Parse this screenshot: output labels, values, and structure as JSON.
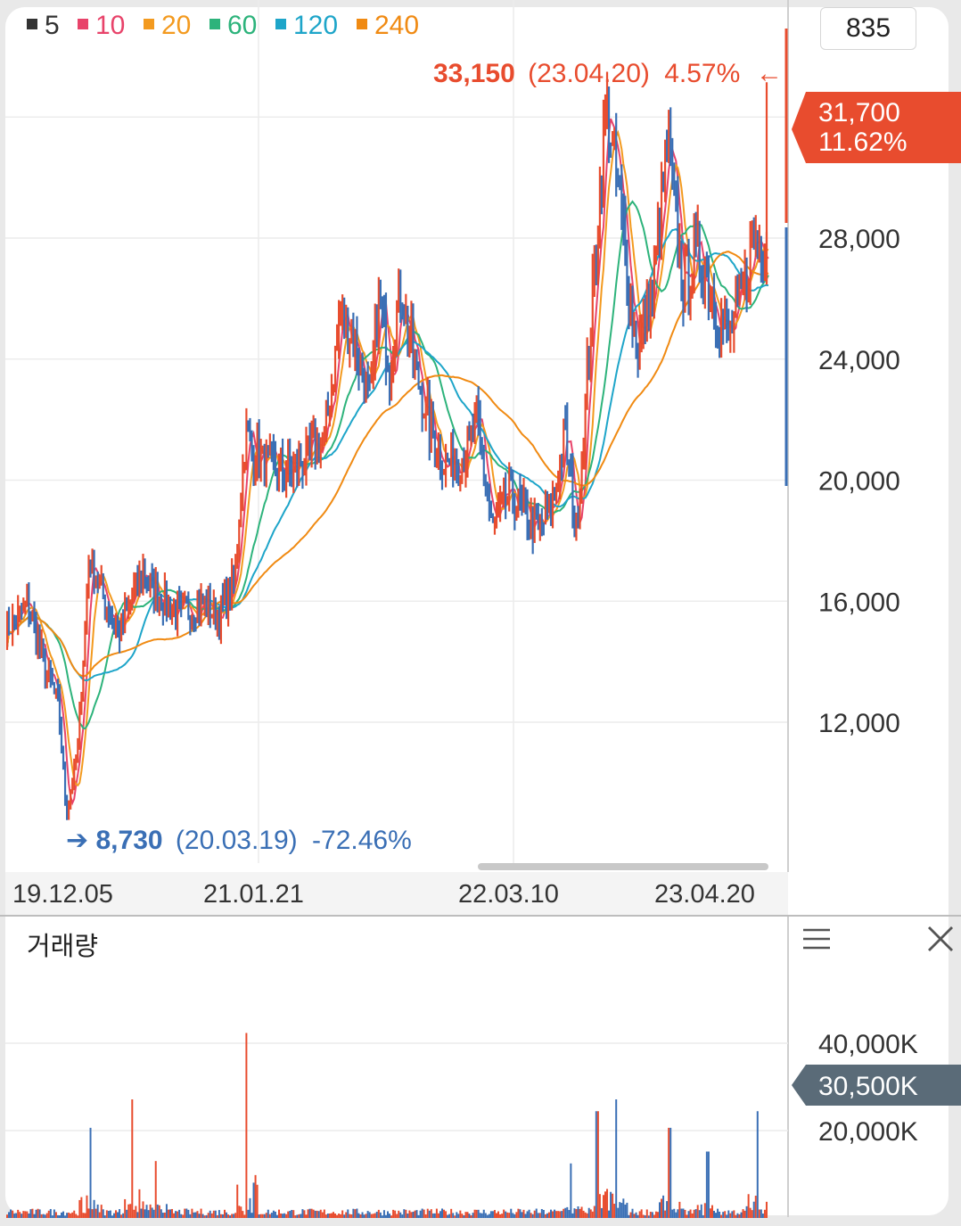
{
  "legend": [
    {
      "label": "5",
      "color": "#333333"
    },
    {
      "label": "10",
      "color": "#e8436a"
    },
    {
      "label": "20",
      "color": "#f39a1f"
    },
    {
      "label": "60",
      "color": "#2db37b"
    },
    {
      "label": "120",
      "color": "#1ea5c9"
    },
    {
      "label": "240",
      "color": "#f08a12"
    }
  ],
  "zoom_value": "835",
  "price_axis": {
    "ticks": [
      "28,000",
      "24,000",
      "20,000",
      "16,000",
      "12,000"
    ]
  },
  "current_price": {
    "value": "31,700",
    "change": "11.62%",
    "color": "#e84c2e"
  },
  "high_annotation": {
    "value": "33,150",
    "date": "(23.04.20)",
    "pct": "4.57%",
    "arrow": "←",
    "color": "#e84c2e"
  },
  "low_annotation": {
    "arrow": "➔",
    "value": "8,730",
    "date": "(20.03.19)",
    "pct": "-72.46%",
    "color": "#3a6fb5"
  },
  "date_axis": [
    "19.12.05",
    "21.01.21",
    "22.03.10",
    "23.04.20"
  ],
  "volume": {
    "title": "거래량",
    "ticks": [
      "40,000K",
      "20,000K"
    ],
    "current": "30,500K",
    "current_color": "#5a6b78"
  },
  "chart_data": {
    "type": "line",
    "title": "",
    "x_ticks": [
      "19.12.05",
      "21.01.21",
      "22.03.10",
      "23.04.20"
    ],
    "y_ticks": [
      12000,
      16000,
      20000,
      24000,
      28000
    ],
    "ylim": [
      7500,
      35000
    ],
    "series": [
      {
        "name": "5",
        "color": "#333333"
      },
      {
        "name": "10",
        "color": "#e8436a"
      },
      {
        "name": "20",
        "color": "#f39a1f"
      },
      {
        "name": "60",
        "color": "#2db37b"
      },
      {
        "name": "120",
        "color": "#1ea5c9"
      },
      {
        "name": "240",
        "color": "#f08a12"
      }
    ],
    "price_path": [
      [
        0,
        15000
      ],
      [
        0.03,
        15900
      ],
      [
        0.05,
        14000
      ],
      [
        0.07,
        12500
      ],
      [
        0.08,
        9000
      ],
      [
        0.095,
        11000
      ],
      [
        0.11,
        17500
      ],
      [
        0.13,
        16000
      ],
      [
        0.15,
        15000
      ],
      [
        0.18,
        17000
      ],
      [
        0.2,
        16200
      ],
      [
        0.23,
        15500
      ],
      [
        0.26,
        16000
      ],
      [
        0.28,
        15500
      ],
      [
        0.3,
        16500
      ],
      [
        0.315,
        21500
      ],
      [
        0.34,
        20500
      ],
      [
        0.37,
        20200
      ],
      [
        0.4,
        20800
      ],
      [
        0.42,
        21400
      ],
      [
        0.44,
        25500
      ],
      [
        0.46,
        24500
      ],
      [
        0.48,
        22500
      ],
      [
        0.49,
        26000
      ],
      [
        0.505,
        23800
      ],
      [
        0.52,
        26300
      ],
      [
        0.54,
        23500
      ],
      [
        0.56,
        21500
      ],
      [
        0.58,
        20500
      ],
      [
        0.6,
        20800
      ],
      [
        0.62,
        21800
      ],
      [
        0.64,
        18400
      ],
      [
        0.66,
        19500
      ],
      [
        0.68,
        19000
      ],
      [
        0.7,
        18300
      ],
      [
        0.72,
        19200
      ],
      [
        0.735,
        21600
      ],
      [
        0.75,
        18200
      ],
      [
        0.77,
        25500
      ],
      [
        0.79,
        32500
      ],
      [
        0.81,
        28500
      ],
      [
        0.83,
        24300
      ],
      [
        0.85,
        26200
      ],
      [
        0.87,
        31000
      ],
      [
        0.89,
        26500
      ],
      [
        0.91,
        27500
      ],
      [
        0.93,
        26000
      ],
      [
        0.95,
        24600
      ],
      [
        0.97,
        26500
      ],
      [
        0.985,
        28000
      ]
    ],
    "volume_spikes": [
      [
        0.11,
        0.38
      ],
      [
        0.165,
        0.5
      ],
      [
        0.195,
        0.24
      ],
      [
        0.315,
        0.78
      ],
      [
        0.74,
        0.23
      ],
      [
        0.775,
        0.45
      ],
      [
        0.8,
        0.5
      ],
      [
        0.87,
        0.38
      ],
      [
        0.92,
        0.28
      ],
      [
        0.985,
        0.45
      ]
    ]
  }
}
